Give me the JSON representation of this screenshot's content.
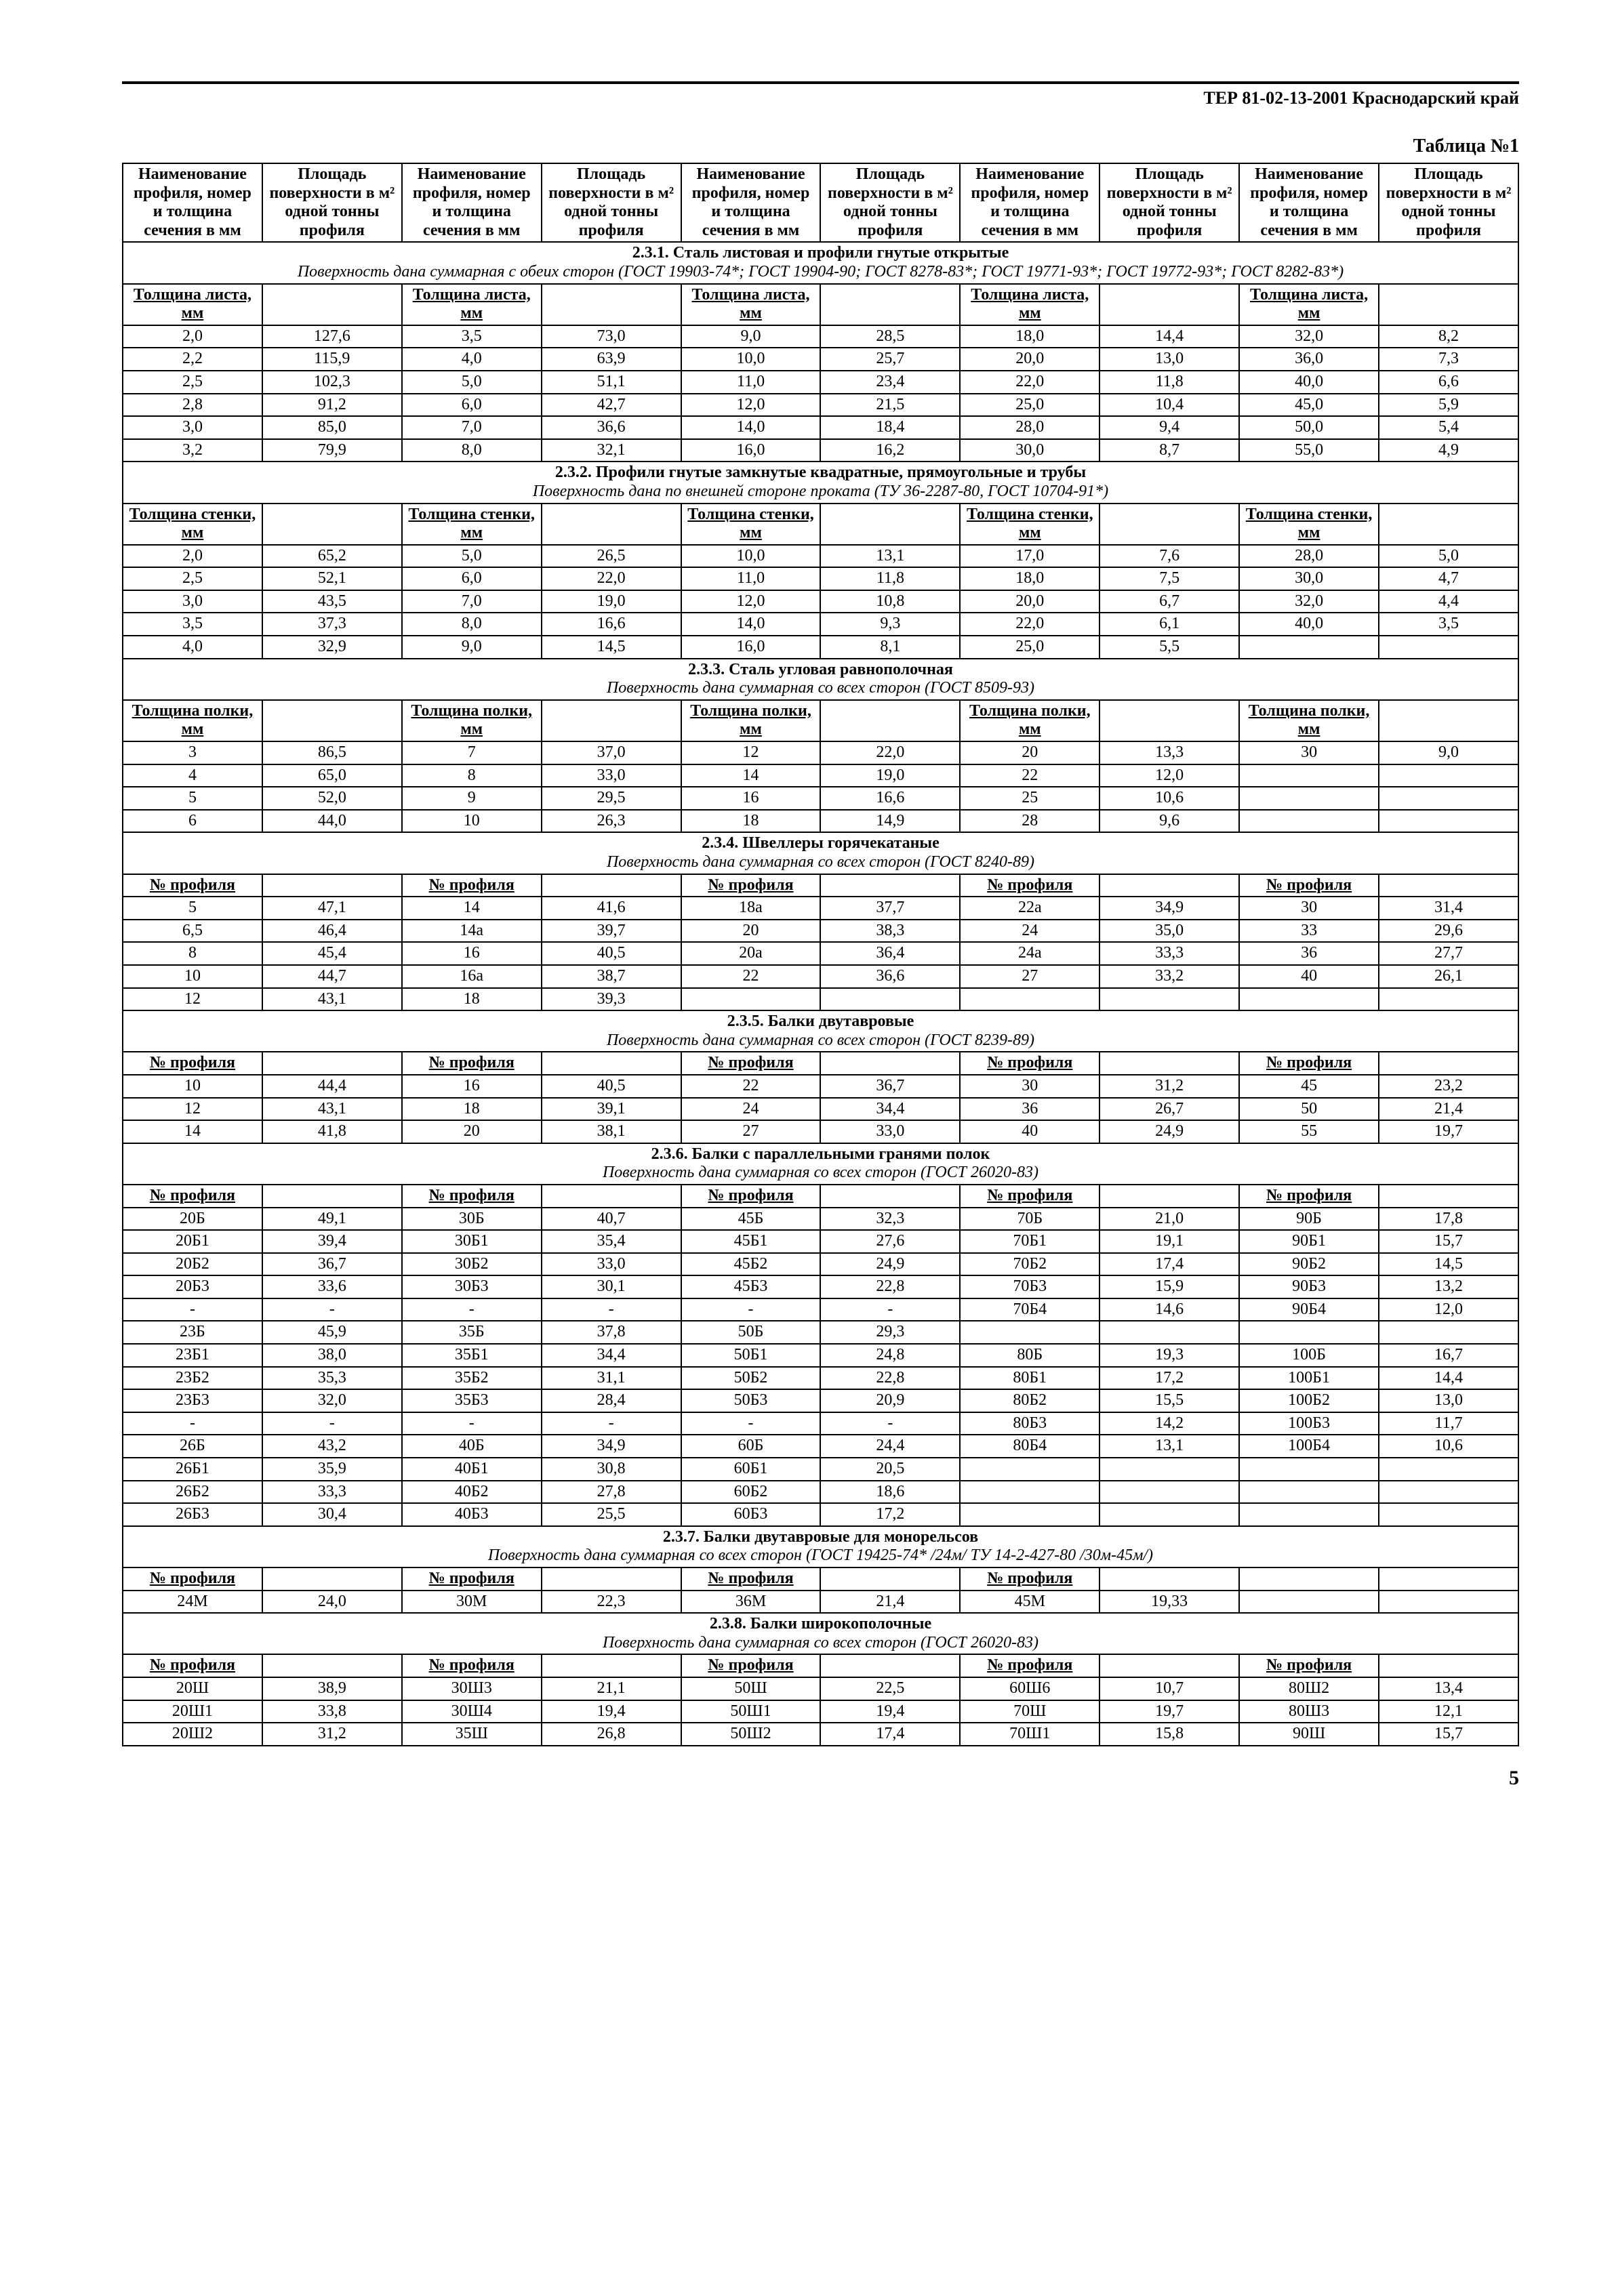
{
  "doc_header": "ТЕР 81-02-13-2001  Краснодарский край",
  "table_label": "Таблица №1",
  "page_number": "5",
  "col_headers": {
    "a": "Наименова­ние про­филя, номер и толщина сечения в мм",
    "b": "Площадь поверхности в м² одной тонны про­филя"
  },
  "sections": [
    {
      "title": "2.3.1. Сталь листовая и профили гнутые открытые",
      "subtitle": "Поверхность дана суммарная с обеих сторон (ГОСТ 19903-74*; ГОСТ 19904-90; ГОСТ 8278-83*; ГОСТ 19771-93*; ГОСТ 19772-93*; ГОСТ 8282-83*)",
      "labels": [
        "Толщина листа, мм",
        "",
        "Толщина листа, мм",
        "",
        "Толщина листа, мм",
        "",
        "Толщина листа, мм",
        "",
        "Толщина листа, мм",
        ""
      ],
      "rows": [
        [
          "2,0",
          "127,6",
          "3,5",
          "73,0",
          "9,0",
          "28,5",
          "18,0",
          "14,4",
          "32,0",
          "8,2"
        ],
        [
          "2,2",
          "115,9",
          "4,0",
          "63,9",
          "10,0",
          "25,7",
          "20,0",
          "13,0",
          "36,0",
          "7,3"
        ],
        [
          "2,5",
          "102,3",
          "5,0",
          "51,1",
          "11,0",
          "23,4",
          "22,0",
          "11,8",
          "40,0",
          "6,6"
        ],
        [
          "2,8",
          "91,2",
          "6,0",
          "42,7",
          "12,0",
          "21,5",
          "25,0",
          "10,4",
          "45,0",
          "5,9"
        ],
        [
          "3,0",
          "85,0",
          "7,0",
          "36,6",
          "14,0",
          "18,4",
          "28,0",
          "9,4",
          "50,0",
          "5,4"
        ],
        [
          "3,2",
          "79,9",
          "8,0",
          "32,1",
          "16,0",
          "16,2",
          "30,0",
          "8,7",
          "55,0",
          "4,9"
        ]
      ]
    },
    {
      "title": "2.3.2. Профили гнутые замкнутые квадратные, прямоугольные и трубы",
      "subtitle": "Поверхность дана по внешней стороне проката (ТУ 36-2287-80, ГОСТ 10704-91*)",
      "labels": [
        "Толщина стенки, мм",
        "",
        "Толщина стенки, мм",
        "",
        "Толщина стенки, мм",
        "",
        "Толщина стенки, мм",
        "",
        "Толщина стенки, мм",
        ""
      ],
      "rows": [
        [
          "2,0",
          "65,2",
          "5,0",
          "26,5",
          "10,0",
          "13,1",
          "17,0",
          "7,6",
          "28,0",
          "5,0"
        ],
        [
          "2,5",
          "52,1",
          "6,0",
          "22,0",
          "11,0",
          "11,8",
          "18,0",
          "7,5",
          "30,0",
          "4,7"
        ],
        [
          "3,0",
          "43,5",
          "7,0",
          "19,0",
          "12,0",
          "10,8",
          "20,0",
          "6,7",
          "32,0",
          "4,4"
        ],
        [
          "3,5",
          "37,3",
          "8,0",
          "16,6",
          "14,0",
          "9,3",
          "22,0",
          "6,1",
          "40,0",
          "3,5"
        ],
        [
          "4,0",
          "32,9",
          "9,0",
          "14,5",
          "16,0",
          "8,1",
          "25,0",
          "5,5",
          "",
          ""
        ]
      ]
    },
    {
      "title": "2.3.3. Сталь угловая равнополочная",
      "subtitle": "Поверхность дана суммарная со всех сторон (ГОСТ 8509-93)",
      "labels": [
        "Толщина полки, мм",
        "",
        "Толщина полки, мм",
        "",
        "Толщина полки, мм",
        "",
        "Толщина полки, мм",
        "",
        "Толщина полки, мм",
        ""
      ],
      "rows": [
        [
          "3",
          "86,5",
          "7",
          "37,0",
          "12",
          "22,0",
          "20",
          "13,3",
          "30",
          "9,0"
        ],
        [
          "4",
          "65,0",
          "8",
          "33,0",
          "14",
          "19,0",
          "22",
          "12,0",
          "",
          ""
        ],
        [
          "5",
          "52,0",
          "9",
          "29,5",
          "16",
          "16,6",
          "25",
          "10,6",
          "",
          ""
        ],
        [
          "6",
          "44,0",
          "10",
          "26,3",
          "18",
          "14,9",
          "28",
          "9,6",
          "",
          ""
        ]
      ]
    },
    {
      "title": "2.3.4. Швеллеры горячекатаные",
      "subtitle": "Поверхность дана суммарная со всех сторон (ГОСТ 8240-89)",
      "labels": [
        "№ профиля",
        "",
        "№ профиля",
        "",
        "№ профиля",
        "",
        "№ профиля",
        "",
        "№ профиля",
        ""
      ],
      "rows": [
        [
          "5",
          "47,1",
          "14",
          "41,6",
          "18а",
          "37,7",
          "22а",
          "34,9",
          "30",
          "31,4"
        ],
        [
          "6,5",
          "46,4",
          "14а",
          "39,7",
          "20",
          "38,3",
          "24",
          "35,0",
          "33",
          "29,6"
        ],
        [
          "8",
          "45,4",
          "16",
          "40,5",
          "20а",
          "36,4",
          "24а",
          "33,3",
          "36",
          "27,7"
        ],
        [
          "10",
          "44,7",
          "16а",
          "38,7",
          "22",
          "36,6",
          "27",
          "33,2",
          "40",
          "26,1"
        ],
        [
          "12",
          "43,1",
          "18",
          "39,3",
          "",
          "",
          "",
          "",
          "",
          ""
        ]
      ]
    },
    {
      "title": "2.3.5. Балки двутавровые",
      "subtitle": "Поверхность дана суммарная со всех сторон (ГОСТ 8239-89)",
      "labels": [
        "№ профиля",
        "",
        "№ профиля",
        "",
        "№ профиля",
        "",
        "№ профиля",
        "",
        "№ профиля",
        ""
      ],
      "rows": [
        [
          "10",
          "44,4",
          "16",
          "40,5",
          "22",
          "36,7",
          "30",
          "31,2",
          "45",
          "23,2"
        ],
        [
          "12",
          "43,1",
          "18",
          "39,1",
          "24",
          "34,4",
          "36",
          "26,7",
          "50",
          "21,4"
        ],
        [
          "14",
          "41,8",
          "20",
          "38,1",
          "27",
          "33,0",
          "40",
          "24,9",
          "55",
          "19,7"
        ]
      ]
    },
    {
      "title": "2.3.6. Балки с параллельными гранями полок",
      "subtitle": "Поверхность дана суммарная со всех сторон (ГОСТ 26020-83)",
      "labels": [
        "№ профиля",
        "",
        "№ профиля",
        "",
        "№ профиля",
        "",
        "№ профиля",
        "",
        "№ профиля",
        ""
      ],
      "rows": [
        [
          "20Б",
          "49,1",
          "30Б",
          "40,7",
          "45Б",
          "32,3",
          "70Б",
          "21,0",
          "90Б",
          "17,8"
        ],
        [
          "20Б1",
          "39,4",
          "30Б1",
          "35,4",
          "45Б1",
          "27,6",
          "70Б1",
          "19,1",
          "90Б1",
          "15,7"
        ],
        [
          "20Б2",
          "36,7",
          "30Б2",
          "33,0",
          "45Б2",
          "24,9",
          "70Б2",
          "17,4",
          "90Б2",
          "14,5"
        ],
        [
          "20Б3",
          "33,6",
          "30Б3",
          "30,1",
          "45Б3",
          "22,8",
          "70Б3",
          "15,9",
          "90Б3",
          "13,2"
        ],
        [
          "-",
          "-",
          "-",
          "-",
          "-",
          "-",
          "70Б4",
          "14,6",
          "90Б4",
          "12,0"
        ],
        [
          "23Б",
          "45,9",
          "35Б",
          "37,8",
          "50Б",
          "29,3",
          "",
          "",
          "",
          ""
        ],
        [
          "23Б1",
          "38,0",
          "35Б1",
          "34,4",
          "50Б1",
          "24,8",
          "80Б",
          "19,3",
          "100Б",
          "16,7"
        ],
        [
          "23Б2",
          "35,3",
          "35Б2",
          "31,1",
          "50Б2",
          "22,8",
          "80Б1",
          "17,2",
          "100Б1",
          "14,4"
        ],
        [
          "23Б3",
          "32,0",
          "35Б3",
          "28,4",
          "50Б3",
          "20,9",
          "80Б2",
          "15,5",
          "100Б2",
          "13,0"
        ],
        [
          "-",
          "-",
          "-",
          "-",
          "-",
          "-",
          "80Б3",
          "14,2",
          "100Б3",
          "11,7"
        ],
        [
          "26Б",
          "43,2",
          "40Б",
          "34,9",
          "60Б",
          "24,4",
          "80Б4",
          "13,1",
          "100Б4",
          "10,6"
        ],
        [
          "26Б1",
          "35,9",
          "40Б1",
          "30,8",
          "60Б1",
          "20,5",
          "",
          "",
          "",
          ""
        ],
        [
          "26Б2",
          "33,3",
          "40Б2",
          "27,8",
          "60Б2",
          "18,6",
          "",
          "",
          "",
          ""
        ],
        [
          "26Б3",
          "30,4",
          "40Б3",
          "25,5",
          "60Б3",
          "17,2",
          "",
          "",
          "",
          ""
        ]
      ]
    },
    {
      "title": "2.3.7. Балки двутавровые для монорельсов",
      "subtitle": "Поверхность дана суммарная со всех сторон (ГОСТ 19425-74* /24м/ ТУ 14-2-427-80 /30м-45м/)",
      "labels": [
        "№ профиля",
        "",
        "№ профиля",
        "",
        "№ профиля",
        "",
        "№ профиля",
        "",
        "",
        ""
      ],
      "rows": [
        [
          "24М",
          "24,0",
          "30М",
          "22,3",
          "36М",
          "21,4",
          "45М",
          "19,33",
          "",
          ""
        ]
      ]
    },
    {
      "title": "2.3.8. Балки широкополочные",
      "subtitle": "Поверхность дана суммарная со всех сторон (ГОСТ 26020-83)",
      "labels": [
        "№ профиля",
        "",
        "№ профиля",
        "",
        "№ профиля",
        "",
        "№ профиля",
        "",
        "№ профиля",
        ""
      ],
      "rows": [
        [
          "20Ш",
          "38,9",
          "30Ш3",
          "21,1",
          "50Ш",
          "22,5",
          "60Ш6",
          "10,7",
          "80Ш2",
          "13,4"
        ],
        [
          "20Ш1",
          "33,8",
          "30Ш4",
          "19,4",
          "50Ш1",
          "19,4",
          "70Ш",
          "19,7",
          "80Ш3",
          "12,1"
        ],
        [
          "20Ш2",
          "31,2",
          "35Ш",
          "26,8",
          "50Ш2",
          "17,4",
          "70Ш1",
          "15,8",
          "90Ш",
          "15,7"
        ]
      ]
    }
  ]
}
